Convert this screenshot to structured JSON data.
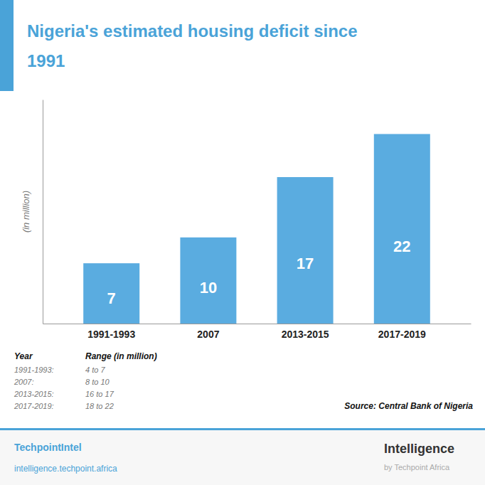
{
  "chart_data": {
    "type": "bar",
    "title": [
      "Nigeria's estimated housing deficit since",
      "1991"
    ],
    "categories": [
      "1991-1993",
      "2007",
      "2013-2015",
      "2017-2019"
    ],
    "values": [
      7,
      10,
      17,
      22
    ],
    "color": "#5aace0",
    "ylabel": "(in million)",
    "ylim": [
      0,
      26
    ],
    "data_labels": true,
    "tick_labels": "x",
    "grid": false,
    "table": {
      "columns": [
        "Year",
        "Range (in million)"
      ],
      "rows": [
        [
          "1991-1993:",
          "4 to 7"
        ],
        [
          "2007:",
          "8 to 10"
        ],
        [
          "2013-2015:",
          "16 to 17"
        ],
        [
          "2017-2019:",
          "18 to 22"
        ]
      ]
    },
    "source": "Source: Central Bank of Nigeria",
    "annotations": [
      "TechpointIntel",
      "intelligence.techpoint.africa",
      "Intelligence",
      "by Techpoint Africa"
    ]
  }
}
